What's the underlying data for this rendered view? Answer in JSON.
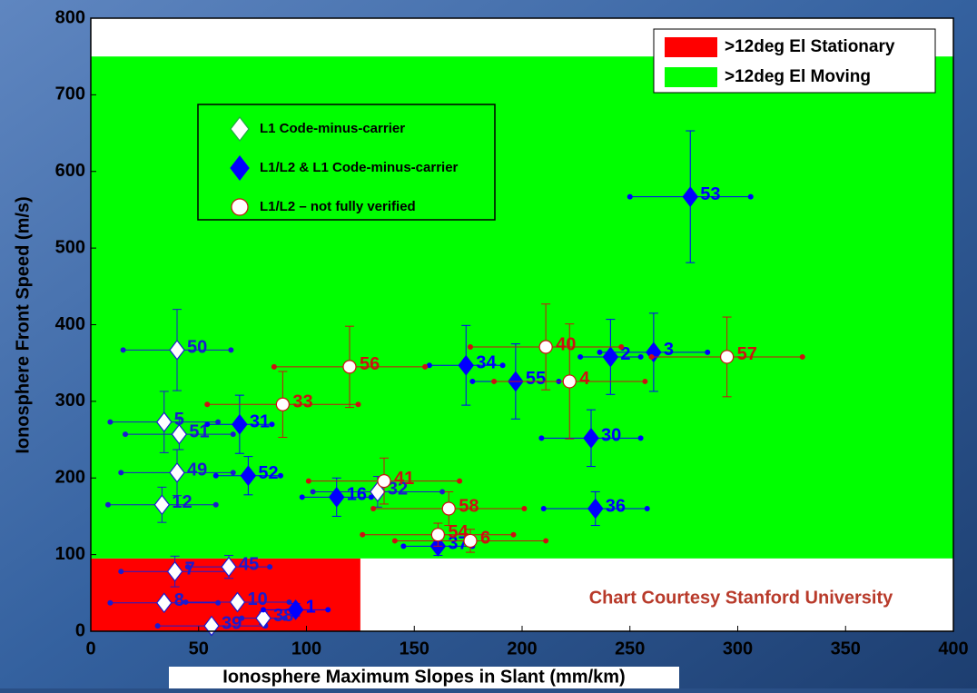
{
  "chart_data": {
    "type": "scatter",
    "x_label": "Ionosphere Maximum Slopes in Slant (mm/km)",
    "y_label": "Ionosphere Front Speed (m/s)",
    "annotation": "Chart Courtesy Stanford University",
    "xlim": [
      0,
      400
    ],
    "xticks": [
      0,
      50,
      100,
      150,
      200,
      250,
      300,
      350,
      400
    ],
    "ylim": [
      0,
      800
    ],
    "yticks": [
      0,
      100,
      200,
      300,
      400,
      500,
      600,
      700,
      800
    ],
    "regions": [
      {
        "name": ">12deg El Stationary",
        "color": "#ff0000",
        "xrange": [
          0,
          125
        ],
        "yrange": [
          0,
          95
        ]
      },
      {
        "name": ">12deg El Moving",
        "color": "#00ff00",
        "xrange": [
          0,
          400
        ],
        "yrange": [
          95,
          750
        ]
      }
    ],
    "series": [
      {
        "name": "L1 Code-minus-carrier",
        "marker": "open-diamond",
        "color": "#1a1ad0",
        "labels": [
          "50",
          "5",
          "51",
          "49",
          "12",
          "7",
          "45",
          "8",
          "10",
          "39",
          "38",
          "32"
        ],
        "x": [
          40,
          34,
          41,
          40,
          33,
          39,
          64,
          34,
          68,
          56,
          80,
          133
        ],
        "values": [
          367,
          273,
          257,
          207,
          165,
          78,
          84,
          37,
          38,
          7,
          17,
          182
        ],
        "xerr": [
          25,
          25,
          25,
          26,
          25,
          25,
          19,
          25,
          24,
          25,
          10,
          30
        ],
        "yerr": [
          53,
          40,
          20,
          30,
          23,
          20,
          15,
          5,
          5,
          5,
          8,
          20
        ]
      },
      {
        "name": "L1/L2 & L1 Code-minus-carrier",
        "marker": "filled-diamond",
        "color": "#0000ff",
        "labels": [
          "53",
          "31",
          "52",
          "1",
          "34",
          "2",
          "3",
          "55",
          "30",
          "16",
          "36",
          "37"
        ],
        "x": [
          278,
          69,
          73,
          95,
          174,
          241,
          261,
          197,
          232,
          114,
          234,
          161
        ],
        "values": [
          567,
          270,
          203,
          28,
          347,
          358,
          364,
          326,
          252,
          175,
          160,
          111
        ],
        "xerr": [
          28,
          15,
          15,
          15,
          17,
          14,
          25,
          20,
          23,
          16,
          24,
          16
        ],
        "yerr": [
          86,
          38,
          25,
          8,
          52,
          49,
          51,
          49,
          37,
          25,
          22,
          12
        ]
      },
      {
        "name": "L1/L2 – not fully verified",
        "marker": "open-circle",
        "color": "#cc1111",
        "labels": [
          "33",
          "56",
          "40",
          "57",
          "4",
          "41",
          "58",
          "54",
          "6"
        ],
        "x": [
          89,
          120,
          211,
          295,
          222,
          136,
          166,
          161,
          176
        ],
        "values": [
          296,
          345,
          371,
          358,
          326,
          196,
          160,
          126,
          118
        ],
        "xerr": [
          35,
          35,
          35,
          35,
          35,
          35,
          35,
          35,
          35
        ],
        "yerr": [
          43,
          53,
          56,
          52,
          75,
          30,
          22,
          15,
          15
        ]
      }
    ]
  }
}
